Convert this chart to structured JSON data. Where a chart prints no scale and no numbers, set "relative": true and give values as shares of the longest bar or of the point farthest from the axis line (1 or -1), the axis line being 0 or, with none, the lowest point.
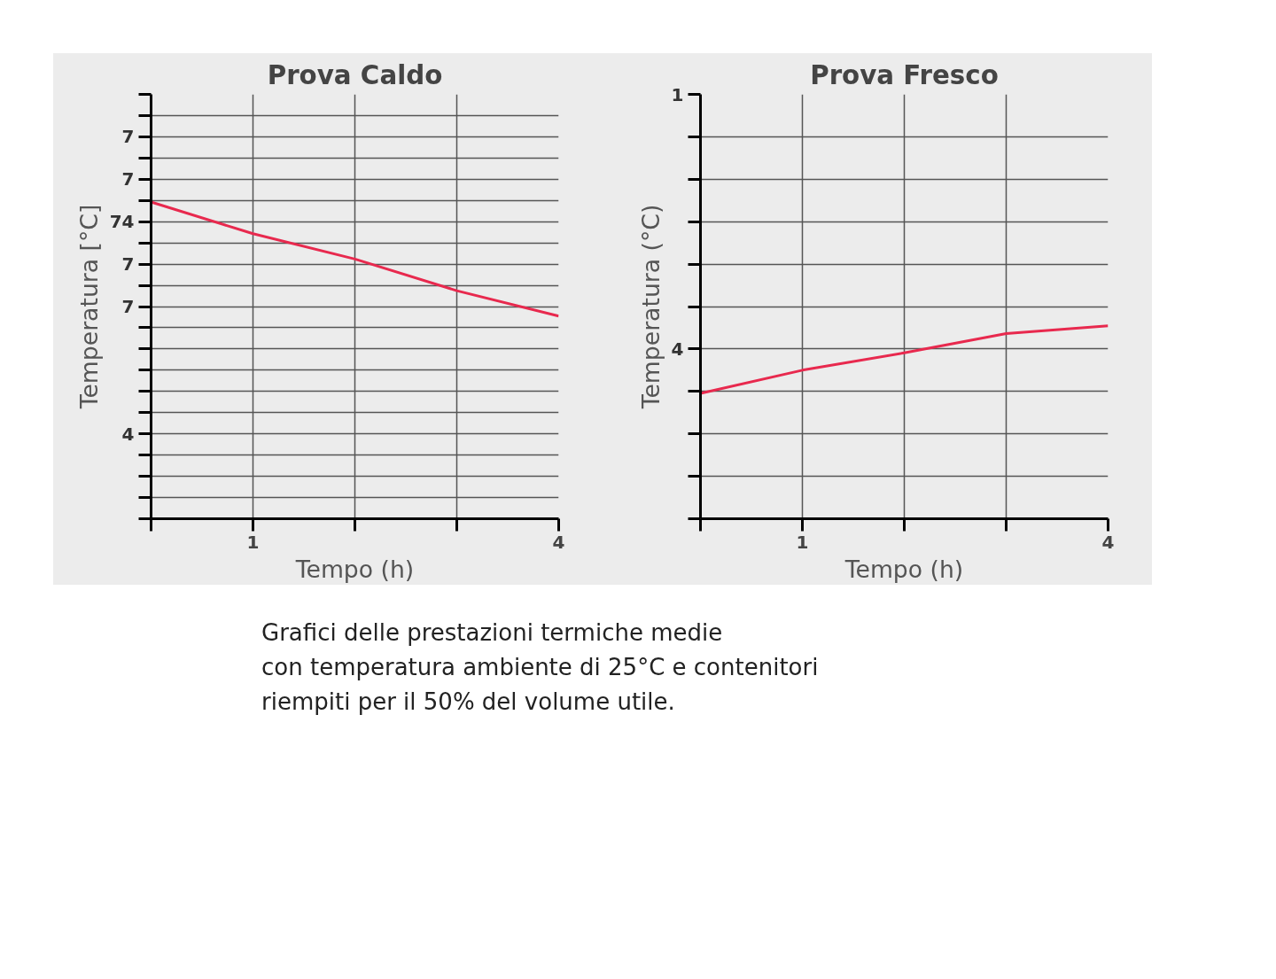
{
  "chart_data": [
    {
      "type": "line",
      "title": "Prova Caldo",
      "xlabel": "Tempo (h)",
      "ylabel": "Temperatura [°C]",
      "x": [
        0,
        1,
        2,
        3,
        4
      ],
      "series": [
        {
          "color": "#e8294e",
          "values": [
            1,
            0.9,
            0.82,
            0.72,
            0.64
          ]
        }
      ],
      "relative": true,
      "xlim": [
        0,
        4
      ],
      "xticks": [
        {
          "value": 0,
          "label": null
        },
        1,
        {
          "value": 2,
          "label": null
        },
        {
          "value": 3,
          "label": null
        },
        4
      ],
      "grid": true,
      "marker": "none",
      "line_style": "solid",
      "annotations": [
        "7",
        "7",
        "74",
        "7",
        "7",
        "4"
      ]
    },
    {
      "type": "line",
      "title": "Prova Fresco",
      "xlabel": "Tempo (h)",
      "ylabel": "Temperatura (°C)",
      "x": [
        0,
        1,
        2,
        3,
        4
      ],
      "series": [
        {
          "color": "#e8294e",
          "values": [
            0.65,
            0.77,
            0.86,
            0.96,
            1
          ]
        }
      ],
      "relative": true,
      "xlim": [
        0,
        4
      ],
      "xticks": [
        {
          "value": 0,
          "label": null
        },
        1,
        {
          "value": 2,
          "label": null
        },
        {
          "value": 3,
          "label": null
        },
        4
      ],
      "grid": true,
      "marker": "none",
      "line_style": "solid",
      "annotations": [
        "1",
        "4",
        "Grafici delle prestazioni termiche medie\ncon temperatura ambiente di 25°C e contenitori\nriempiti per il 50% del volume utile."
      ]
    }
  ]
}
